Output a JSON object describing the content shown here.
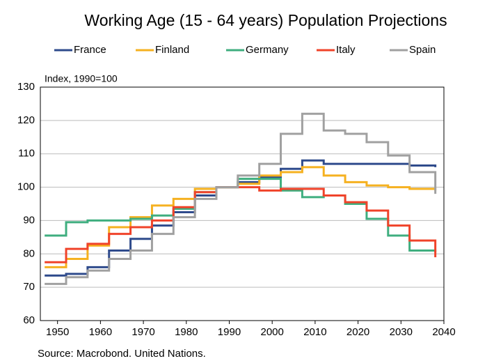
{
  "chart_data": {
    "type": "line",
    "step": true,
    "title": "Working Age (15 - 64 years) Population Projections",
    "annotation": "Index, 1990=100",
    "source": "Source: Macrobond. United Nations.",
    "x": [
      1947,
      1952,
      1957,
      1962,
      1967,
      1972,
      1977,
      1982,
      1987,
      1992,
      1997,
      2002,
      2007,
      2012,
      2017,
      2022,
      2027,
      2032,
      2037,
      2038
    ],
    "series": [
      {
        "name": "France",
        "color": "#2f4b8c",
        "values": [
          73.5,
          74,
          76,
          81,
          84.5,
          88.5,
          92.5,
          97.5,
          100,
          101.5,
          103,
          105.5,
          108,
          107,
          107,
          107,
          107,
          106.5,
          106.5,
          106
        ]
      },
      {
        "name": "Finland",
        "color": "#f5b120",
        "values": [
          76,
          78.5,
          82.5,
          88,
          91,
          94.5,
          96.5,
          99.5,
          100,
          101,
          103.5,
          104.5,
          106,
          103.5,
          101.5,
          100.5,
          100,
          99.5,
          99.5,
          99
        ]
      },
      {
        "name": "Germany",
        "color": "#3fae7f",
        "values": [
          85.5,
          89.5,
          90,
          90,
          90.5,
          91.5,
          93.5,
          98.5,
          100,
          102.5,
          102.5,
          99,
          97,
          97.5,
          95,
          90.5,
          85.5,
          81,
          81,
          80.5
        ]
      },
      {
        "name": "Italy",
        "color": "#f0432a",
        "values": [
          77.5,
          81.5,
          83,
          86,
          88,
          90,
          94,
          98.5,
          100,
          100,
          99,
          99.5,
          99.5,
          97.5,
          95.5,
          93,
          88.5,
          84,
          84,
          79
        ]
      },
      {
        "name": "Spain",
        "color": "#a0a0a0",
        "values": [
          71,
          73,
          75,
          78.5,
          81,
          86,
          91,
          96.5,
          100,
          103.5,
          107,
          116,
          122,
          117,
          116,
          113.5,
          109.5,
          104.5,
          104.5,
          98
        ]
      }
    ],
    "xlim": [
      1946,
      2040
    ],
    "xticks": [
      1950,
      1960,
      1970,
      1980,
      1990,
      2000,
      2010,
      2020,
      2030,
      2040
    ],
    "ylim": [
      60,
      130
    ],
    "yticks": [
      60,
      70,
      80,
      90,
      100,
      110,
      120,
      130
    ],
    "grid": true
  }
}
